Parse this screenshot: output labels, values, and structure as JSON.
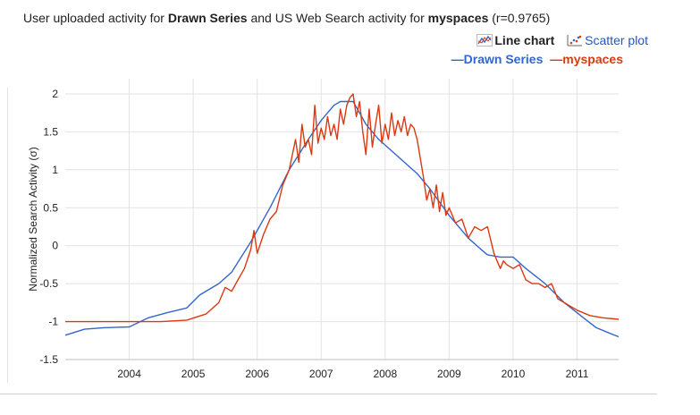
{
  "header": {
    "title_prefix": "User uploaded activity for ",
    "title_series": "Drawn Series",
    "title_middle": " and US Web Search activity for ",
    "title_term": "myspaces",
    "title_r": " (r=0.9765)"
  },
  "toolbar": {
    "line_chart_label": "Line chart",
    "scatter_plot_label": "Scatter plot"
  },
  "legend": {
    "items": [
      {
        "label": "—Drawn Series",
        "color": "#3366cc"
      },
      {
        "label": "—myspaces",
        "color": "#dc3912"
      }
    ]
  },
  "chart_data": {
    "type": "line",
    "ylabel": "Normalized Search Activity (σ)",
    "xlim": [
      2003.0,
      2011.65
    ],
    "ylim": [
      -1.5,
      2.2
    ],
    "yticks": [
      2,
      1.5,
      1,
      0.5,
      0,
      -0.5,
      -1,
      -1.5
    ],
    "ytick_labels": [
      "2",
      "1.5",
      "1",
      "0.5",
      "0",
      "-0.5",
      "-1",
      "-1.5"
    ],
    "xticks": [
      2004,
      2005,
      2006,
      2007,
      2008,
      2009,
      2010,
      2011
    ],
    "xtick_labels": [
      "2004",
      "2005",
      "2006",
      "2007",
      "2008",
      "2009",
      "2010",
      "2011"
    ],
    "grid": true,
    "legend_position": "top-right",
    "series": [
      {
        "name": "Drawn Series",
        "color": "#3366cc",
        "x": [
          2003.0,
          2003.3,
          2003.6,
          2004.0,
          2004.3,
          2004.6,
          2004.9,
          2005.1,
          2005.4,
          2005.6,
          2005.9,
          2006.2,
          2006.5,
          2006.8,
          2007.0,
          2007.2,
          2007.3,
          2007.5,
          2007.7,
          2007.9,
          2008.1,
          2008.3,
          2008.5,
          2008.7,
          2009.0,
          2009.3,
          2009.5,
          2009.6,
          2009.8,
          2010.0,
          2010.2,
          2010.5,
          2010.8,
          2011.1,
          2011.3,
          2011.5,
          2011.65
        ],
        "y": [
          -1.18,
          -1.1,
          -1.08,
          -1.07,
          -0.95,
          -0.88,
          -0.82,
          -0.65,
          -0.5,
          -0.35,
          0.05,
          0.5,
          1.0,
          1.4,
          1.65,
          1.85,
          1.9,
          1.9,
          1.6,
          1.4,
          1.25,
          1.1,
          0.95,
          0.75,
          0.4,
          0.1,
          -0.05,
          -0.12,
          -0.15,
          -0.15,
          -0.3,
          -0.5,
          -0.75,
          -0.95,
          -1.08,
          -1.15,
          -1.2
        ]
      },
      {
        "name": "myspaces",
        "color": "#dc3912",
        "x": [
          2003.0,
          2004.0,
          2004.5,
          2004.9,
          2005.2,
          2005.4,
          2005.5,
          2005.6,
          2005.7,
          2005.8,
          2005.9,
          2005.95,
          2006.0,
          2006.1,
          2006.2,
          2006.3,
          2006.4,
          2006.5,
          2006.6,
          2006.65,
          2006.7,
          2006.75,
          2006.8,
          2006.85,
          2006.9,
          2006.95,
          2007.0,
          2007.05,
          2007.1,
          2007.15,
          2007.2,
          2007.25,
          2007.3,
          2007.35,
          2007.4,
          2007.45,
          2007.5,
          2007.55,
          2007.6,
          2007.65,
          2007.7,
          2007.75,
          2007.8,
          2007.85,
          2007.9,
          2007.95,
          2008.0,
          2008.05,
          2008.1,
          2008.15,
          2008.2,
          2008.25,
          2008.3,
          2008.35,
          2008.4,
          2008.45,
          2008.5,
          2008.6,
          2008.65,
          2008.7,
          2008.75,
          2008.8,
          2008.85,
          2008.9,
          2008.95,
          2009.0,
          2009.1,
          2009.2,
          2009.3,
          2009.4,
          2009.5,
          2009.6,
          2009.7,
          2009.75,
          2009.8,
          2009.85,
          2009.9,
          2010.0,
          2010.1,
          2010.2,
          2010.3,
          2010.4,
          2010.5,
          2010.6,
          2010.7,
          2010.8,
          2010.9,
          2011.0,
          2011.2,
          2011.4,
          2011.65
        ],
        "y": [
          -1.0,
          -1.0,
          -1.0,
          -0.98,
          -0.9,
          -0.75,
          -0.55,
          -0.6,
          -0.45,
          -0.3,
          -0.05,
          0.2,
          -0.1,
          0.15,
          0.35,
          0.45,
          0.8,
          1.0,
          1.4,
          1.1,
          1.6,
          1.3,
          1.4,
          1.2,
          1.85,
          1.35,
          1.55,
          1.4,
          1.7,
          1.45,
          1.6,
          1.4,
          1.8,
          1.6,
          1.85,
          1.95,
          2.0,
          1.7,
          1.9,
          1.5,
          1.2,
          1.8,
          1.3,
          1.6,
          1.85,
          1.35,
          1.6,
          1.4,
          1.75,
          1.45,
          1.65,
          1.5,
          1.7,
          1.45,
          1.6,
          1.55,
          1.4,
          0.9,
          0.6,
          0.75,
          0.5,
          0.8,
          0.45,
          0.7,
          0.4,
          0.5,
          0.3,
          0.35,
          0.1,
          0.25,
          0.2,
          0.25,
          -0.1,
          -0.2,
          -0.3,
          -0.2,
          -0.25,
          -0.3,
          -0.25,
          -0.45,
          -0.5,
          -0.5,
          -0.55,
          -0.5,
          -0.7,
          -0.75,
          -0.8,
          -0.85,
          -0.92,
          -0.95,
          -0.97
        ]
      }
    ]
  }
}
